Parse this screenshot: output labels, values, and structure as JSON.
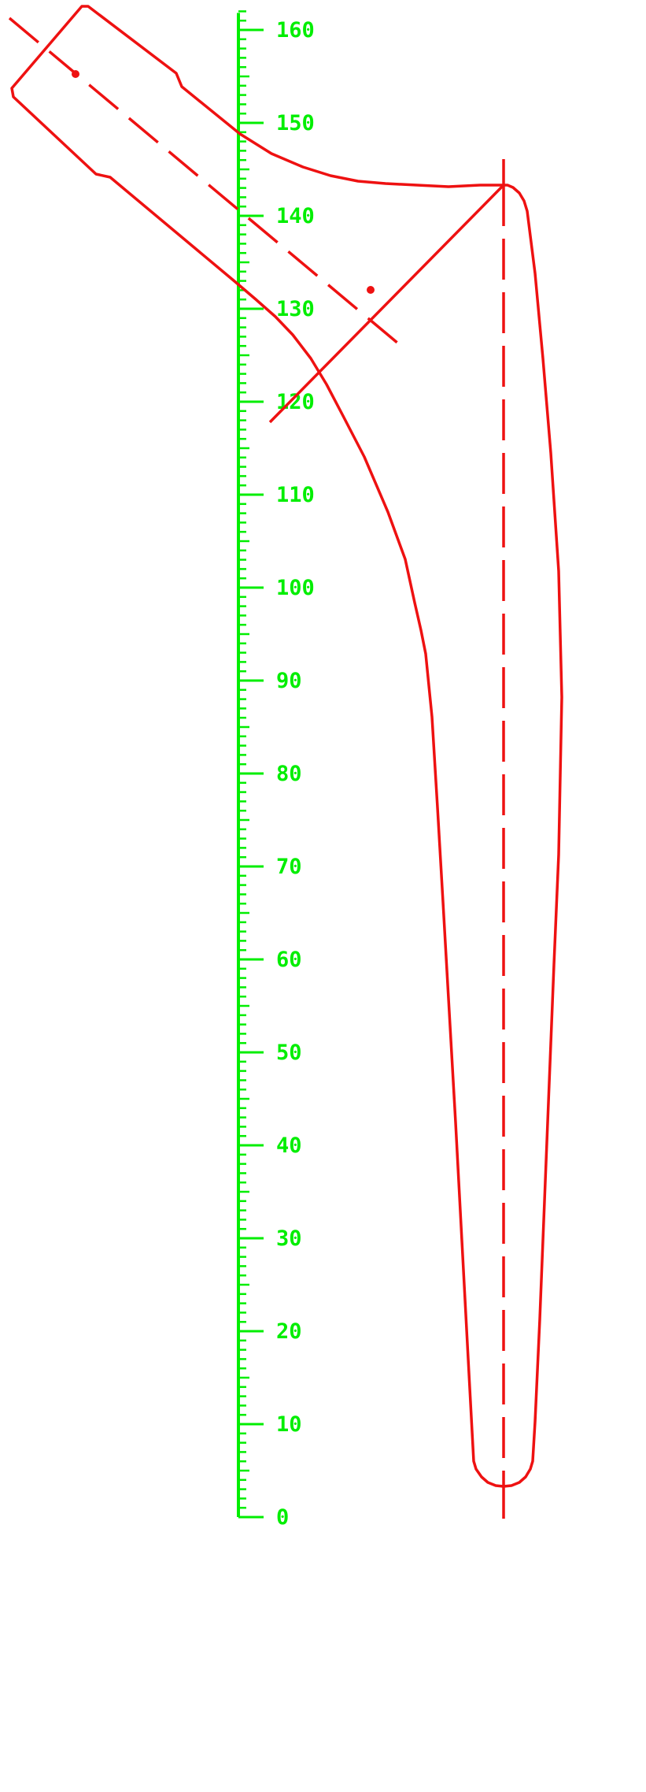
{
  "ruler": {
    "color": "#00ee00",
    "min": 0,
    "max": 162,
    "label_step": 10,
    "minor_step": 1,
    "labels": [
      "0",
      "10",
      "20",
      "30",
      "40",
      "50",
      "60",
      "70",
      "80",
      "90",
      "100",
      "110",
      "120",
      "130",
      "140",
      "150",
      "160"
    ]
  },
  "drawing": {
    "color": "#ee1111",
    "outline_shape": "femur-implant-outline",
    "axes": [
      "shaft-axis-dashed",
      "neck-axis-dashed",
      "head-line"
    ],
    "center_points": [
      "head-center-point",
      "neck-center-point"
    ]
  }
}
